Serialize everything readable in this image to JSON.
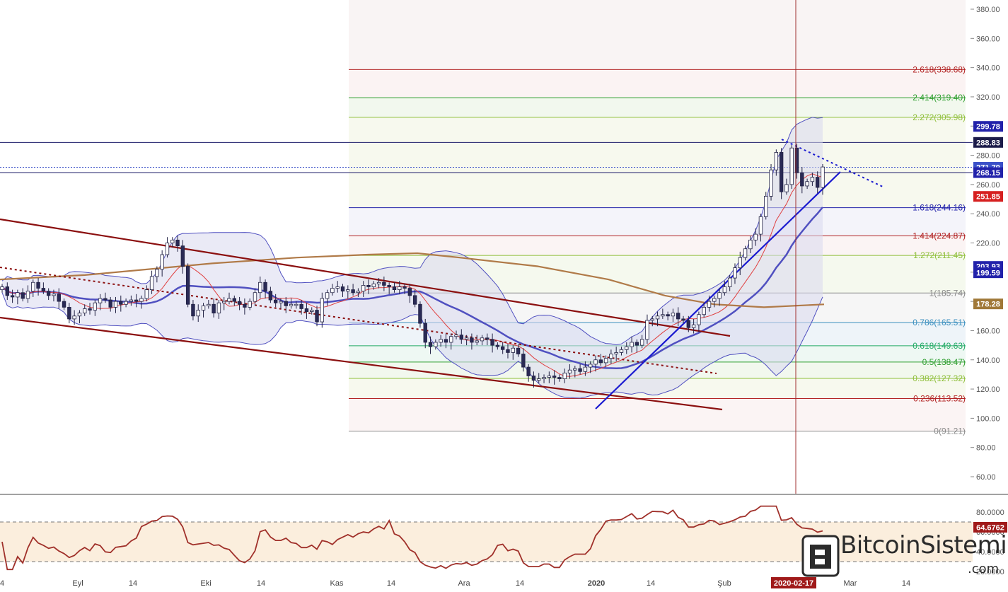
{
  "chart_data": {
    "type": "candlestick",
    "price_axis": {
      "ticks": [
        "380.00",
        "360.00",
        "340.00",
        "320.00",
        "300.00",
        "280.00",
        "260.00",
        "240.00",
        "220.00",
        "200.00",
        "180.00",
        "160.00",
        "140.00",
        "120.00",
        "100.00",
        "80.00",
        "60.00"
      ],
      "range": [
        46,
        390
      ]
    },
    "rsi_axis": {
      "ticks": [
        "80.0000",
        "60.0000",
        "40.0000",
        "20.0000"
      ],
      "overbought": 70,
      "oversold": 30
    },
    "time_labels": [
      "4",
      "Eyl",
      "14",
      "Eki",
      "14",
      "Kas",
      "14",
      "Ara",
      "14",
      "2020",
      "14",
      "Şub",
      "2020-02-17",
      "Mar",
      "14"
    ],
    "fibonacci": [
      {
        "label": "2.618(338.68)",
        "value": 338.68,
        "color": "#b22222"
      },
      {
        "label": "2.414(319.40)",
        "value": 319.4,
        "color": "#2e9e2e"
      },
      {
        "label": "2.272(305.98)",
        "value": 305.98,
        "color": "#8fbf3a"
      },
      {
        "label": "1.618(244.16)",
        "value": 244.16,
        "color": "#2222aa"
      },
      {
        "label": "1.414(224.87)",
        "value": 224.87,
        "color": "#b22222"
      },
      {
        "label": "1.272(211.45)",
        "value": 211.45,
        "color": "#8fbf3a"
      },
      {
        "label": "1(185.74)",
        "value": 185.74,
        "color": "#8a8a8a"
      },
      {
        "label": "0.786(165.51)",
        "value": 165.51,
        "color": "#3a8fbf"
      },
      {
        "label": "0.618(149.63)",
        "value": 149.63,
        "color": "#22aa66"
      },
      {
        "label": "0.5(138.47)",
        "value": 138.47,
        "color": "#2e9e2e"
      },
      {
        "label": "0.382(127.32)",
        "value": 127.32,
        "color": "#8fbf3a"
      },
      {
        "label": "0.236(113.52)",
        "value": 113.52,
        "color": "#b22222"
      },
      {
        "label": "0(91.21)",
        "value": 91.21,
        "color": "#8a8a8a"
      }
    ],
    "price_badges": [
      {
        "label": "299.78",
        "value": 299.78,
        "bg": "#2222aa"
      },
      {
        "label": "288.83",
        "value": 288.83,
        "bg": "#1c1c4a"
      },
      {
        "label": "271.79",
        "value": 271.79,
        "bg": "#3a50c8"
      },
      {
        "label": "268.15",
        "value": 268.15,
        "bg": "#2222aa"
      },
      {
        "label": "251.85",
        "value": 251.85,
        "bg": "#d62020"
      },
      {
        "label": "203.93",
        "value": 203.93,
        "bg": "#2222aa"
      },
      {
        "label": "199.59",
        "value": 199.59,
        "bg": "#2222aa"
      },
      {
        "label": "178.28",
        "value": 178.28,
        "bg": "#a07838"
      }
    ],
    "rsi_badge": {
      "label": "64.6762",
      "value": 64.6762,
      "bg": "#a01a1a"
    },
    "horizontal_lines": [
      288.83,
      268.15
    ],
    "closes": [
      190,
      184,
      183,
      186,
      182,
      187,
      193,
      189,
      187,
      184,
      185,
      180,
      176,
      168,
      170,
      172,
      175,
      174,
      179,
      182,
      181,
      176,
      180,
      178,
      180,
      181,
      180,
      182,
      188,
      197,
      202,
      212,
      220,
      222,
      218,
      204,
      178,
      170,
      174,
      177,
      178,
      172,
      179,
      180,
      182,
      180,
      178,
      176,
      180,
      186,
      193,
      187,
      181,
      179,
      180,
      177,
      178,
      178,
      175,
      173,
      174,
      166,
      182,
      186,
      189,
      190,
      187,
      188,
      186,
      187,
      191,
      190,
      192,
      193,
      191,
      190,
      188,
      190,
      189,
      184,
      178,
      165,
      152,
      149,
      152,
      154,
      152,
      156,
      157,
      154,
      155,
      152,
      153,
      155,
      154,
      150,
      149,
      147,
      145,
      148,
      144,
      135,
      129,
      126,
      127,
      128,
      129,
      128,
      127,
      131,
      133,
      134,
      132,
      135,
      137,
      140,
      138,
      141,
      144,
      145,
      147,
      149,
      152,
      150,
      154,
      167,
      168,
      170,
      171,
      170,
      172,
      168,
      167,
      162,
      164,
      171,
      176,
      180,
      182,
      186,
      190,
      196,
      203,
      210,
      216,
      222,
      226,
      238,
      252,
      270,
      282,
      255,
      260,
      285,
      268,
      259,
      262,
      265,
      258,
      272
    ]
  },
  "watermark": {
    "text": "BitcoinSistemi",
    "suffix": ".com"
  },
  "colors": {
    "bollinger_fill": "#d8d8ee",
    "bollinger_line": "#5050c0",
    "channel": "#8b0f0f",
    "trend_line": "#1a1ad0",
    "ma200": "#b07a48",
    "rsi_line": "#a0302a",
    "rsi_band": "#fbeedd"
  }
}
